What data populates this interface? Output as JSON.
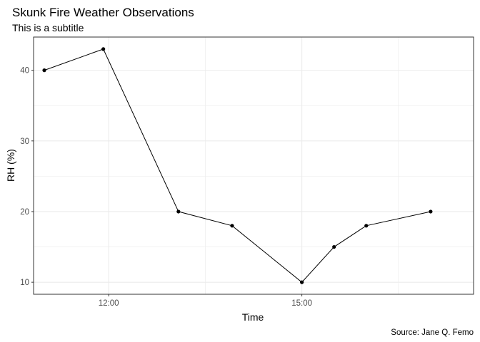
{
  "chart_data": {
    "type": "line",
    "title": "Skunk Fire Weather Observations",
    "subtitle": "This is a subtitle",
    "xlabel": "Time",
    "ylabel": "RH (%)",
    "caption": "Source: Jane Q. Femo",
    "x_ticks": [
      "12:00",
      "15:00"
    ],
    "y_ticks": [
      10,
      20,
      30,
      40
    ],
    "xlim": [
      "10:50",
      "17:40"
    ],
    "ylim": [
      8.3,
      44.7
    ],
    "grid": true,
    "legend": "none",
    "series": [
      {
        "x": [
          "11:00",
          "11:55",
          "13:05",
          "13:55",
          "15:00",
          "15:30",
          "16:00",
          "17:00"
        ],
        "y": [
          40,
          43,
          20,
          18,
          10,
          15,
          18,
          20
        ]
      }
    ],
    "colors": {
      "line": "#000000",
      "points": "#000000",
      "grid": "#ebebeb",
      "panel_border": "#333333"
    }
  }
}
